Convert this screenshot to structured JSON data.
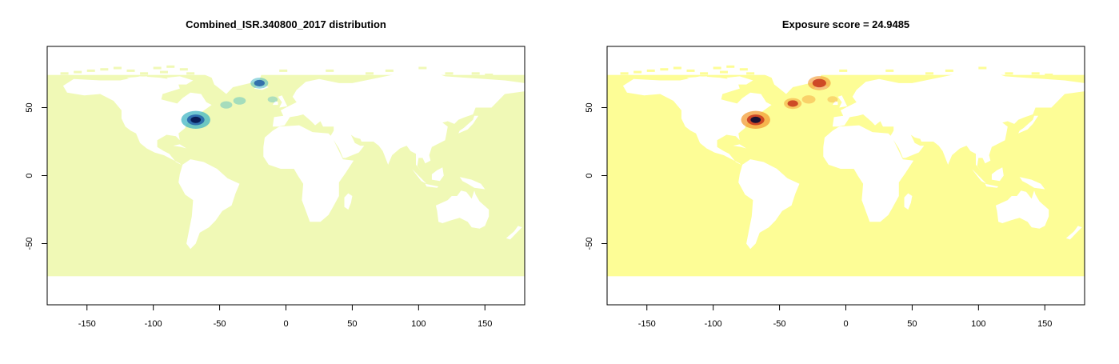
{
  "chart_data": [
    {
      "type": "heatmap",
      "title": "Combined_ISR.340800_2017 distribution",
      "xlabel": "",
      "ylabel": "",
      "xlim": [
        -180,
        180
      ],
      "ylim": [
        -95,
        95
      ],
      "xticks": [
        -150,
        -100,
        -50,
        0,
        50,
        100,
        150
      ],
      "yticks": [
        -50,
        0,
        50
      ],
      "grid": false,
      "legend": "none",
      "colors": {
        "ocean": "#f0f9b6",
        "land": "#ffffff",
        "mid": "#41b6c4",
        "high": "#225ea8",
        "peak": "#081d58"
      },
      "hotspots": [
        {
          "lon": -68,
          "lat": 41,
          "value": 1.0
        },
        {
          "lon": -20,
          "lat": 68,
          "value": 0.45
        },
        {
          "lon": -35,
          "lat": 55,
          "value": 0.2
        },
        {
          "lon": -45,
          "lat": 52,
          "value": 0.18
        },
        {
          "lon": -10,
          "lat": 56,
          "value": 0.08
        }
      ]
    },
    {
      "type": "heatmap",
      "title": "Exposure score = 24.9485",
      "xlabel": "",
      "ylabel": "",
      "xlim": [
        -180,
        180
      ],
      "ylim": [
        -95,
        95
      ],
      "xticks": [
        -150,
        -100,
        -50,
        0,
        50,
        100,
        150
      ],
      "yticks": [
        -50,
        0,
        50
      ],
      "grid": false,
      "legend": "none",
      "colors": {
        "ocean": "#fdfd96",
        "land": "#ffffff",
        "mid": "#f39c34",
        "high": "#c7341c",
        "peak": "#1a1233"
      },
      "hotspots": [
        {
          "lon": -68,
          "lat": 41,
          "value": 1.0
        },
        {
          "lon": -20,
          "lat": 68,
          "value": 0.7
        },
        {
          "lon": -40,
          "lat": 53,
          "value": 0.45
        },
        {
          "lon": -28,
          "lat": 56,
          "value": 0.25
        },
        {
          "lon": -10,
          "lat": 56,
          "value": 0.1
        }
      ]
    }
  ]
}
